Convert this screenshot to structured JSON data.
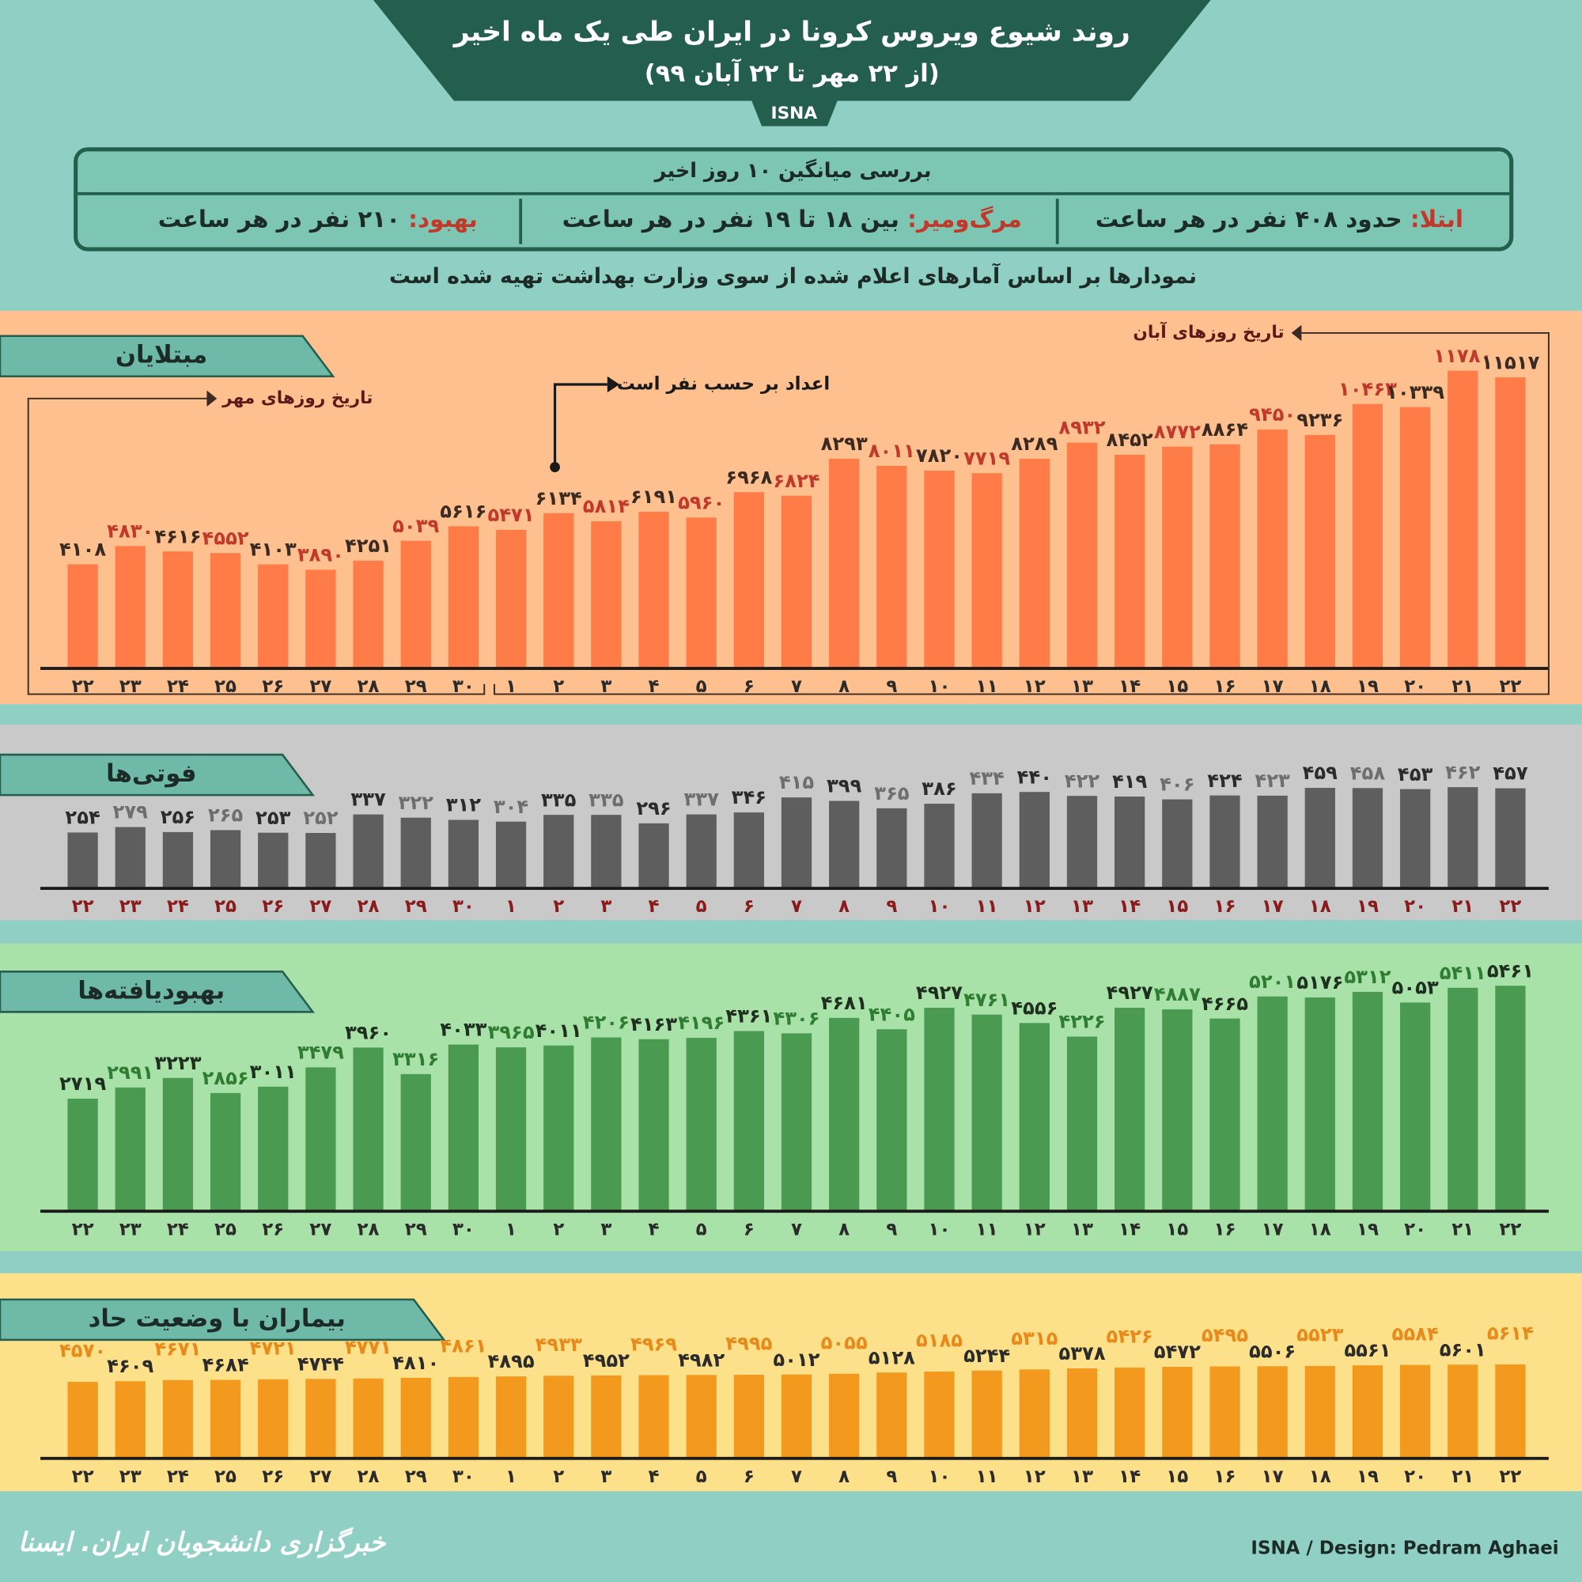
{
  "header": {
    "title": "روند شیوع ویروس کرونا در ایران طی یک ماه اخیر",
    "subtitle": "(از ۲۲ مهر تا ۲۲ آبان ۹۹)",
    "badge": "ISNA"
  },
  "summary": {
    "title": "بررسی میانگین ۱۰ روز اخیر",
    "items": [
      {
        "label": "ابتلا:",
        "text": "حدود ۴۰۸ نفر در هر ساعت"
      },
      {
        "label": "مرگ‌ومیر:",
        "text": "بین ۱۸ تا ۱۹ نفر در هر ساعت"
      },
      {
        "label": "بهبود:",
        "text": "۲۱۰ نفر در هر ساعت"
      }
    ]
  },
  "note": "نمودارها بر اساس آمارهای اعلام شده از سوی وزارت بهداشت تهیه شده است",
  "chart_data": [
    {
      "type": "bar",
      "title": "مبتلایان",
      "color": "#ff7b47",
      "label_colors": [
        "#3a2a22",
        "#c0392b"
      ],
      "annotations": [
        "تاریخ روزهای مهر",
        "اعداد بر حسب نفر است",
        "تاریخ روزهای آبان"
      ],
      "ylim": [
        0,
        12000
      ],
      "categories": [
        "۲۲",
        "۲۳",
        "۲۴",
        "۲۵",
        "۲۶",
        "۲۷",
        "۲۸",
        "۲۹",
        "۳۰",
        "۱",
        "۲",
        "۳",
        "۴",
        "۵",
        "۶",
        "۷",
        "۸",
        "۹",
        "۱۰",
        "۱۱",
        "۱۲",
        "۱۳",
        "۱۴",
        "۱۵",
        "۱۶",
        "۱۷",
        "۱۸",
        "۱۹",
        "۲۰",
        "۲۱",
        "۲۲"
      ],
      "values": [
        4108,
        4830,
        4616,
        4552,
        4103,
        3890,
        4251,
        5039,
        5616,
        5471,
        6134,
        5814,
        6191,
        5960,
        6968,
        6824,
        8293,
        8011,
        7820,
        7719,
        8289,
        8932,
        8452,
        8772,
        8864,
        9450,
        9236,
        10463,
        10339,
        11780,
        11517
      ],
      "value_labels": [
        "۴۱۰۸",
        "۴۸۳۰",
        "۴۶۱۶",
        "۴۵۵۲",
        "۴۱۰۳",
        "۳۸۹۰",
        "۴۲۵۱",
        "۵۰۳۹",
        "۵۶۱۶",
        "۵۴۷۱",
        "۶۱۳۴",
        "۵۸۱۴",
        "۶۱۹۱",
        "۵۹۶۰",
        "۶۹۶۸",
        "۶۸۲۴",
        "۸۲۹۳",
        "۸۰۱۱",
        "۷۸۲۰",
        "۷۷۱۹",
        "۸۲۸۹",
        "۸۹۳۲",
        "۸۴۵۲",
        "۸۷۷۲",
        "۸۸۶۴",
        "۹۴۵۰",
        "۹۲۳۶",
        "۱۰۴۶۳",
        "۱۰۳۳۹",
        "۱۱۷۸۰",
        "۱۱۵۱۷"
      ]
    },
    {
      "type": "bar",
      "title": "فوتی‌ها",
      "color": "#5e5e5e",
      "label_colors": [
        "#2b2b2b",
        "#6e6e6e"
      ],
      "ylim": [
        0,
        500
      ],
      "categories": [
        "۲۲",
        "۲۳",
        "۲۴",
        "۲۵",
        "۲۶",
        "۲۷",
        "۲۸",
        "۲۹",
        "۳۰",
        "۱",
        "۲",
        "۳",
        "۴",
        "۵",
        "۶",
        "۷",
        "۸",
        "۹",
        "۱۰",
        "۱۱",
        "۱۲",
        "۱۳",
        "۱۴",
        "۱۵",
        "۱۶",
        "۱۷",
        "۱۸",
        "۱۹",
        "۲۰",
        "۲۱",
        "۲۲"
      ],
      "values": [
        254,
        279,
        256,
        265,
        253,
        252,
        337,
        322,
        312,
        304,
        335,
        335,
        296,
        337,
        346,
        415,
        399,
        365,
        386,
        434,
        440,
        422,
        419,
        406,
        424,
        423,
        459,
        458,
        453,
        462,
        457
      ],
      "value_labels": [
        "۲۵۴",
        "۲۷۹",
        "۲۵۶",
        "۲۶۵",
        "۲۵۳",
        "۲۵۲",
        "۳۳۷",
        "۳۲۲",
        "۳۱۲",
        "۳۰۴",
        "۳۳۵",
        "۳۳۵",
        "۲۹۶",
        "۳۳۷",
        "۳۴۶",
        "۴۱۵",
        "۳۹۹",
        "۳۶۵",
        "۳۸۶",
        "۴۳۴",
        "۴۴۰",
        "۴۲۲",
        "۴۱۹",
        "۴۰۶",
        "۴۲۴",
        "۴۲۳",
        "۴۵۹",
        "۴۵۸",
        "۴۵۳",
        "۴۶۲",
        "۴۵۷"
      ]
    },
    {
      "type": "bar",
      "title": "بهبودیافته‌ها",
      "color": "#4a9a52",
      "label_colors": [
        "#1f2f1f",
        "#2e7d32"
      ],
      "ylim": [
        0,
        6000
      ],
      "categories": [
        "۲۲",
        "۲۳",
        "۲۴",
        "۲۵",
        "۲۶",
        "۲۷",
        "۲۸",
        "۲۹",
        "۳۰",
        "۱",
        "۲",
        "۳",
        "۴",
        "۵",
        "۶",
        "۷",
        "۸",
        "۹",
        "۱۰",
        "۱۱",
        "۱۲",
        "۱۳",
        "۱۴",
        "۱۵",
        "۱۶",
        "۱۷",
        "۱۸",
        "۱۹",
        "۲۰",
        "۲۱",
        "۲۲"
      ],
      "values": [
        2719,
        2991,
        3223,
        2856,
        3011,
        3479,
        3960,
        3316,
        4033,
        3965,
        4011,
        4206,
        4163,
        4196,
        4361,
        4306,
        4681,
        4405,
        4927,
        4761,
        4556,
        4226,
        4927,
        4887,
        4665,
        5201,
        5176,
        5312,
        5053,
        5411,
        5461
      ],
      "value_labels": [
        "۲۷۱۹",
        "۲۹۹۱",
        "۳۲۲۳",
        "۲۸۵۶",
        "۳۰۱۱",
        "۳۴۷۹",
        "۳۹۶۰",
        "۳۳۱۶",
        "۴۰۳۳",
        "۳۹۶۵",
        "۴۰۱۱",
        "۴۲۰۶",
        "۴۱۶۳",
        "۴۱۹۶",
        "۴۳۶۱",
        "۴۳۰۶",
        "۴۶۸۱",
        "۴۴۰۵",
        "۴۹۲۷",
        "۴۷۶۱",
        "۴۵۵۶",
        "۴۲۲۶",
        "۴۹۲۷",
        "۴۸۸۷",
        "۴۶۶۵",
        "۵۲۰۱",
        "۵۱۷۶",
        "۵۳۱۲",
        "۵۰۵۳",
        "۵۴۱۱",
        "۵۴۶۱"
      ]
    },
    {
      "type": "bar",
      "title": "بیماران با وضعیت حاد",
      "color": "#f39a1e",
      "label_colors": [
        "#e8891a",
        "#2b2b2b"
      ],
      "ylim": [
        0,
        6000
      ],
      "categories": [
        "۲۲",
        "۲۳",
        "۲۴",
        "۲۵",
        "۲۶",
        "۲۷",
        "۲۸",
        "۲۹",
        "۳۰",
        "۱",
        "۲",
        "۳",
        "۴",
        "۵",
        "۶",
        "۷",
        "۸",
        "۹",
        "۱۰",
        "۱۱",
        "۱۲",
        "۱۳",
        "۱۴",
        "۱۵",
        "۱۶",
        "۱۷",
        "۱۸",
        "۱۹",
        "۲۰",
        "۲۱",
        "۲۲"
      ],
      "values": [
        4570,
        4609,
        4671,
        4684,
        4721,
        4744,
        4771,
        4810,
        4861,
        4895,
        4933,
        4952,
        4969,
        4982,
        4995,
        5012,
        5055,
        5128,
        5185,
        5244,
        5315,
        5378,
        5426,
        5472,
        5495,
        5506,
        5523,
        5561,
        5584,
        5601,
        5614
      ],
      "value_labels": [
        "۴۵۷۰",
        "۴۶۰۹",
        "۴۶۷۱",
        "۴۶۸۴",
        "۴۷۲۱",
        "۴۷۴۴",
        "۴۷۷۱",
        "۴۸۱۰",
        "۴۸۶۱",
        "۴۸۹۵",
        "۴۹۳۳",
        "۴۹۵۲",
        "۴۹۶۹",
        "۴۹۸۲",
        "۴۹۹۵",
        "۵۰۱۲",
        "۵۰۵۵",
        "۵۱۲۸",
        "۵۱۸۵",
        "۵۲۴۴",
        "۵۳۱۵",
        "۵۳۷۸",
        "۵۴۲۶",
        "۵۴۷۲",
        "۵۴۹۵",
        "۵۵۰۶",
        "۵۵۲۳",
        "۵۵۶۱",
        "۵۵۸۴",
        "۵۶۰۱",
        "۵۶۱۴"
      ]
    }
  ],
  "footer": {
    "logo": "خبرگزاری دانشجویان ایران. ایسنا",
    "credit": "ISNA / Design: Pedram Aghaei"
  }
}
